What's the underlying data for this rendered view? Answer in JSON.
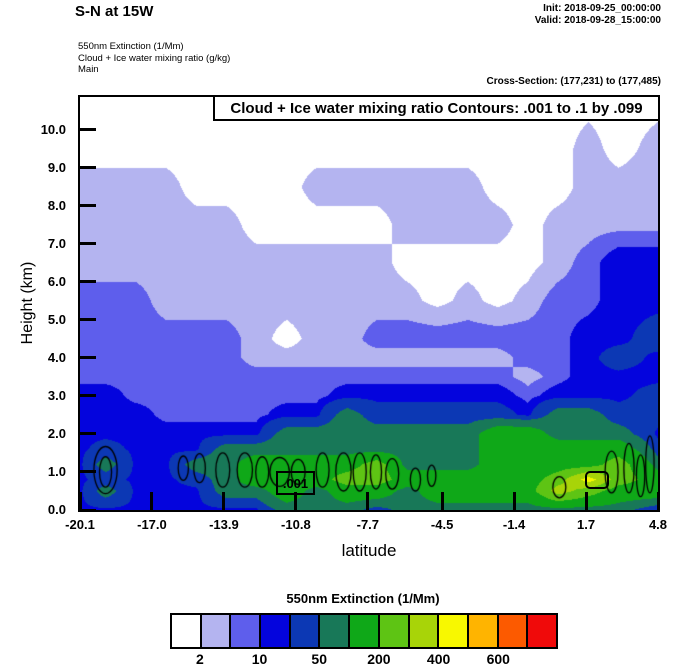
{
  "header": {
    "section_title": "S-N at 15W",
    "init_line": "Init: 2018-09-25_00:00:00",
    "valid_line": "Valid: 2018-09-28_15:00:00",
    "fields": [
      "550nm Extinction   (1/Mm)",
      "Cloud + Ice water mixing ratio   (g/kg)",
      "Main"
    ],
    "cross_section": "Cross-Section: (177,231) to (177,485)"
  },
  "plot": {
    "contour_title": "Cloud + Ice water mixing ratio Contours: .001 to .1 by .099",
    "xlabel": "latitude",
    "ylabel": "Height (km)",
    "contour_label": ".001"
  },
  "chart_data": {
    "type": "heatmap",
    "title": "550nm Extinction (1/Mm) cross-section with Cloud + Ice water mixing ratio contours",
    "xlabel": "latitude",
    "ylabel": "Height (km)",
    "xlim": [
      -20.1,
      4.8
    ],
    "ylim": [
      0,
      10.86
    ],
    "xticks": [
      -20.1,
      -17.0,
      -13.9,
      -10.8,
      -7.7,
      -4.5,
      -1.4,
      1.7,
      4.8
    ],
    "xtick_labels": [
      "-20.1",
      "-17.0",
      "-13.9",
      "-10.8",
      "-7.7",
      "-4.5",
      "-1.4",
      "1.7",
      "4.8"
    ],
    "yticks": [
      0,
      1,
      2,
      3,
      4,
      5,
      6,
      7,
      8,
      9,
      10
    ],
    "ytick_labels": [
      "0.0",
      "1.0",
      "2.0",
      "3.0",
      "4.0",
      "5.0",
      "6.0",
      "7.0",
      "8.0",
      "9.0",
      "10.0"
    ],
    "x": [
      -20.1,
      -19,
      -17.7,
      -16.4,
      -15.1,
      -13.8,
      -12.5,
      -11.2,
      -9.9,
      -8.6,
      -7.3,
      -6,
      -4.7,
      -3.4,
      -2.1,
      -0.8,
      0.5,
      1.8,
      3.1,
      4.8
    ],
    "y": [
      0,
      0.5,
      0.8,
      1.2,
      1.6,
      2.0,
      2.5,
      3.0,
      3.5,
      4.0,
      4.5,
      5.5,
      6.5,
      7.5,
      8.5,
      9.5,
      10.9
    ],
    "values_units": "1/Mm (550nm extinction, estimated from fill colors)",
    "values": [
      [
        15,
        15,
        15,
        15,
        15,
        15,
        15,
        70,
        70,
        70,
        30,
        70,
        70,
        70,
        70,
        70,
        70,
        70,
        70,
        15
      ],
      [
        15,
        70,
        15,
        15,
        15,
        70,
        70,
        150,
        70,
        150,
        150,
        70,
        150,
        150,
        150,
        150,
        350,
        250,
        150,
        150
      ],
      [
        15,
        30,
        15,
        15,
        30,
        70,
        150,
        150,
        150,
        250,
        250,
        150,
        150,
        150,
        150,
        150,
        250,
        450,
        250,
        150
      ],
      [
        15,
        70,
        15,
        15,
        70,
        70,
        150,
        150,
        150,
        150,
        250,
        70,
        70,
        70,
        150,
        150,
        150,
        150,
        250,
        70
      ],
      [
        15,
        30,
        15,
        15,
        15,
        70,
        70,
        70,
        70,
        70,
        70,
        70,
        70,
        70,
        150,
        150,
        150,
        150,
        150,
        30
      ],
      [
        15,
        15,
        15,
        15,
        15,
        15,
        15,
        70,
        70,
        70,
        70,
        70,
        70,
        70,
        150,
        150,
        70,
        70,
        70,
        15
      ],
      [
        15,
        15,
        15,
        7,
        7,
        7,
        7,
        15,
        15,
        70,
        30,
        30,
        30,
        30,
        30,
        15,
        70,
        70,
        30,
        30
      ],
      [
        15,
        15,
        7,
        7,
        7,
        7,
        7,
        7,
        7,
        15,
        15,
        15,
        15,
        15,
        15,
        7,
        15,
        15,
        15,
        30
      ],
      [
        7,
        7,
        7,
        7,
        7,
        7,
        7,
        7,
        7,
        7,
        7,
        7,
        7,
        7,
        7,
        3,
        7,
        15,
        15,
        15
      ],
      [
        7,
        7,
        7,
        7,
        7,
        7,
        3,
        3,
        3,
        3,
        3,
        3,
        3,
        3,
        3,
        7,
        7,
        15,
        30,
        15
      ],
      [
        7,
        7,
        7,
        7,
        7,
        7,
        3,
        1,
        3,
        3,
        7,
        7,
        7,
        7,
        7,
        7,
        7,
        15,
        15,
        30
      ],
      [
        7,
        7,
        7,
        3,
        3,
        3,
        3,
        3,
        3,
        3,
        3,
        3,
        1,
        3,
        1,
        3,
        7,
        7,
        15,
        15
      ],
      [
        3,
        3,
        3,
        3,
        3,
        3,
        3,
        3,
        3,
        3,
        3,
        1,
        1,
        1,
        1,
        1,
        3,
        7,
        15,
        15
      ],
      [
        3,
        3,
        3,
        3,
        3,
        3,
        1,
        1,
        1,
        1,
        1,
        3,
        3,
        3,
        3,
        1,
        3,
        3,
        3,
        3
      ],
      [
        3,
        3,
        3,
        3,
        1,
        1,
        1,
        1,
        3,
        3,
        3,
        3,
        3,
        3,
        1,
        1,
        1,
        3,
        3,
        3
      ],
      [
        1,
        1,
        1,
        1,
        1,
        1,
        1,
        1,
        1,
        1,
        1,
        1,
        1,
        1,
        1,
        1,
        1,
        3,
        1,
        3
      ],
      [
        1,
        1,
        1,
        1,
        1,
        1,
        1,
        1,
        1,
        1,
        1,
        1,
        1,
        1,
        1,
        1,
        1,
        1,
        1,
        1
      ]
    ],
    "colorbar": {
      "title": "550nm Extinction  (1/Mm)",
      "levels": [
        2,
        5,
        10,
        20,
        50,
        100,
        200,
        300,
        400,
        500,
        600,
        700
      ],
      "colors": [
        "#ffffff",
        "#b4b4f0",
        "#5e5eec",
        "#0404dd",
        "#0c38b4",
        "#187858",
        "#0fa818",
        "#5ec414",
        "#a8d408",
        "#f8f800",
        "#ffb400",
        "#fc5a00",
        "#f00a0a"
      ],
      "tick_labels": [
        "2",
        "10",
        "50",
        "200",
        "400",
        "600"
      ],
      "tick_boundary_indices": [
        1,
        3,
        5,
        7,
        9,
        11
      ]
    },
    "mixing_ratio_contours": {
      "label": ".001",
      "range_text": ".001 to .1 by .099",
      "ellipses": [
        [
          -19.0,
          1.05,
          0.5,
          0.62
        ],
        [
          -19.0,
          1.0,
          0.26,
          0.4
        ],
        [
          -15.65,
          1.1,
          0.22,
          0.32
        ],
        [
          -14.95,
          1.1,
          0.25,
          0.38
        ],
        [
          -13.95,
          1.05,
          0.3,
          0.45
        ],
        [
          -13.0,
          1.05,
          0.33,
          0.45
        ],
        [
          -12.25,
          1.0,
          0.28,
          0.4
        ],
        [
          -11.5,
          1.0,
          0.42,
          0.38
        ],
        [
          -10.7,
          1.0,
          0.3,
          0.33
        ],
        [
          -9.65,
          1.05,
          0.28,
          0.45
        ],
        [
          -8.75,
          1.0,
          0.33,
          0.5
        ],
        [
          -8.05,
          1.0,
          0.28,
          0.5
        ],
        [
          -7.35,
          1.0,
          0.24,
          0.45
        ],
        [
          -6.65,
          0.95,
          0.28,
          0.4
        ],
        [
          -5.65,
          0.8,
          0.22,
          0.3
        ],
        [
          -4.95,
          0.9,
          0.18,
          0.28
        ],
        [
          0.55,
          0.6,
          0.28,
          0.28
        ],
        [
          2.8,
          1.0,
          0.28,
          0.55
        ],
        [
          3.55,
          1.1,
          0.22,
          0.65
        ],
        [
          4.05,
          0.9,
          0.18,
          0.55
        ],
        [
          4.45,
          1.2,
          0.18,
          0.75
        ]
      ]
    }
  }
}
